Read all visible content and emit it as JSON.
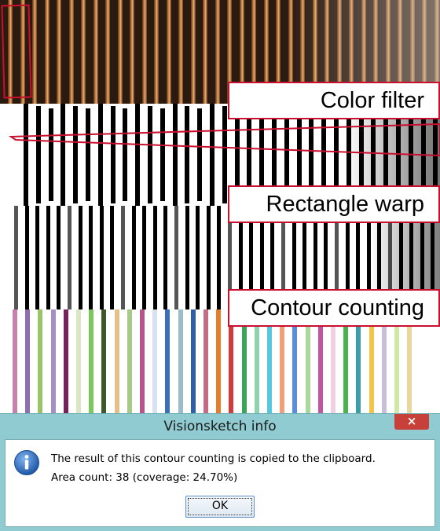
{
  "callouts": {
    "color_filter": "Color filter",
    "rectangle_warp": "Rectangle warp",
    "contour_counting": "Contour counting"
  },
  "dialog": {
    "title": "Visionsketch info",
    "close": "×",
    "message_line1": "The result of this contour counting is copied to the clipboard.",
    "message_line2": "Area count: 38 (coverage: 24.70%)",
    "ok_label": "OK",
    "icon": "info-icon"
  },
  "colors": {
    "accent_red": "#c8102e",
    "dialog_frame": "#8fcbd0",
    "close_red": "#c7403a",
    "info_blue": "#2f6fc6"
  },
  "contour_stripe_colors": [
    "#c77fb0",
    "#8e6fae",
    "#9bc46a",
    "#a68fc8",
    "#7a1f5c",
    "#d9e8c2",
    "#7ac95a",
    "#3a5a2a",
    "#e3c08a",
    "#a7c98a",
    "#b5558a",
    "#d6e2ef",
    "#3c6fb5",
    "#9cbcc9",
    "#2e5fa8",
    "#c76a84",
    "#e57d2a",
    "#d33a3a",
    "#3aa55a",
    "#8ed3b0",
    "#58c7e0",
    "#f0a079",
    "#5a8ed8",
    "#a8d89a",
    "#c255a0",
    "#f0d0e0",
    "#48b34a",
    "#3aa0a8",
    "#f2c44c",
    "#c8c0d8",
    "#cfe8a8",
    "#e8d8a0"
  ]
}
